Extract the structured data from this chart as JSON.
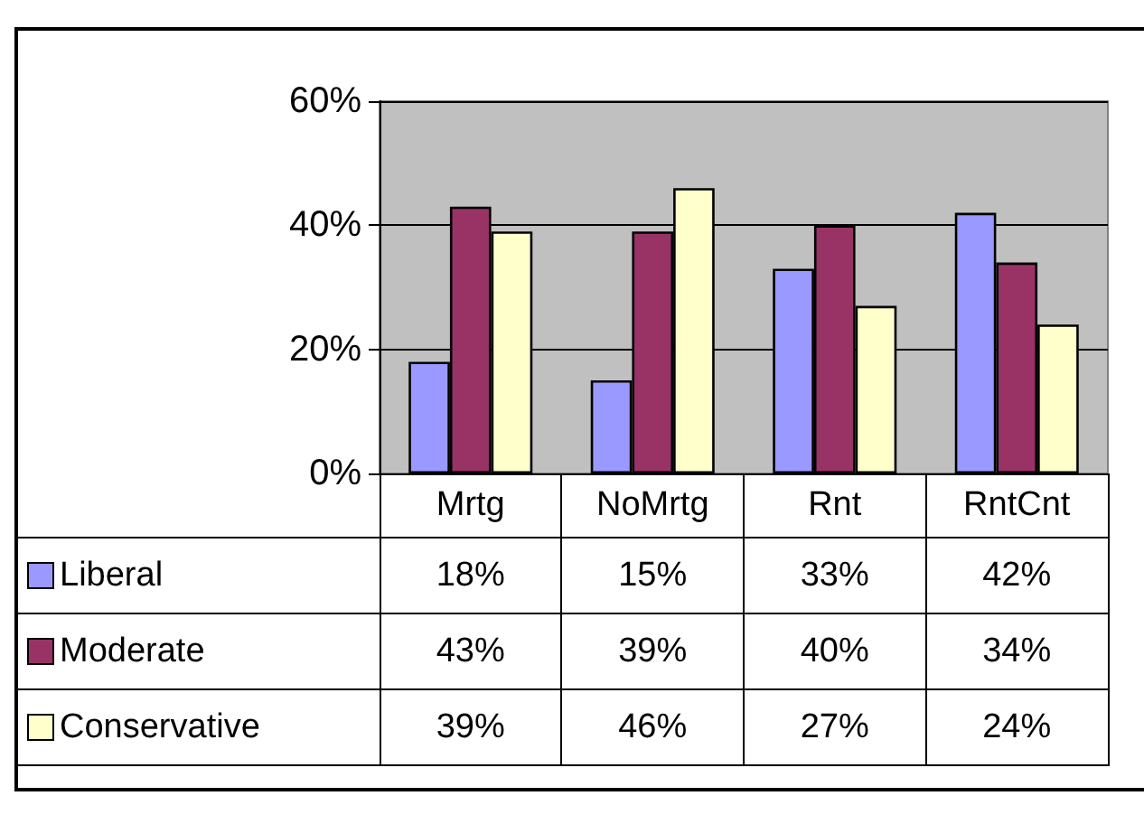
{
  "chart_data": {
    "type": "bar",
    "categories": [
      "Mrtg",
      "NoMrtg",
      "Rnt",
      "RntCnt"
    ],
    "series": [
      {
        "name": "Liberal",
        "color": "#9999ff",
        "values": [
          18,
          15,
          33,
          42
        ],
        "value_labels": [
          "18%",
          "15%",
          "33%",
          "42%"
        ]
      },
      {
        "name": "Moderate",
        "color": "#993366",
        "values": [
          43,
          39,
          40,
          34
        ],
        "value_labels": [
          "43%",
          "39%",
          "40%",
          "34%"
        ]
      },
      {
        "name": "Conservative",
        "color": "#ffffcc",
        "values": [
          39,
          46,
          27,
          24
        ],
        "value_labels": [
          "39%",
          "46%",
          "27%",
          "24%"
        ]
      }
    ],
    "ylim": [
      0,
      60
    ],
    "yticks": [
      {
        "value": 0,
        "label": "0%"
      },
      {
        "value": 20,
        "label": "20%"
      },
      {
        "value": 40,
        "label": "40%"
      },
      {
        "value": 60,
        "label": "60%"
      }
    ],
    "grid": "y",
    "legend": "bottom"
  }
}
